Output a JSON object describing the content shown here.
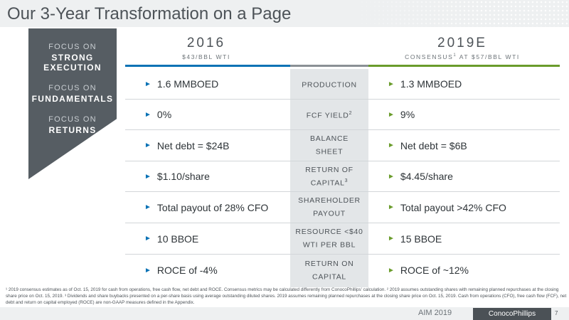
{
  "title": "Our 3-Year Transformation on a Page",
  "sidebar": {
    "items": [
      {
        "pre": "FOCUS ON",
        "main": "STRONG EXECUTION"
      },
      {
        "pre": "FOCUS ON",
        "main": "FUNDAMENTALS"
      },
      {
        "pre": "FOCUS ON",
        "main": "RETURNS"
      }
    ]
  },
  "left_column": {
    "year": "2016",
    "subtitle": "$43/BBL WTI",
    "accent_color": "#0a72b5"
  },
  "right_column": {
    "year": "2019E",
    "subtitle_pre": "CONSENSUS",
    "subtitle_sup": "1",
    "subtitle_post": " AT $57/BBL WTI",
    "accent_color": "#6a9c2b"
  },
  "rows": [
    {
      "left": "1.6 MMBOED",
      "metric": "PRODUCTION",
      "metric_sup": "",
      "right": "1.3 MMBOED"
    },
    {
      "left": "0%",
      "metric": "FCF YIELD",
      "metric_sup": "2",
      "right": "9%"
    },
    {
      "left": "Net debt = $24B",
      "metric": "BALANCE SHEET",
      "metric_sup": "",
      "right": "Net debt = $6B"
    },
    {
      "left": "$1.10/share",
      "metric": "RETURN OF CAPITAL",
      "metric_sup": "3",
      "right": "$4.45/share"
    },
    {
      "left": "Total payout of 28% CFO",
      "metric": "SHAREHOLDER PAYOUT",
      "metric_sup": "",
      "right": "Total payout >42% CFO"
    },
    {
      "left": "10 BBOE",
      "metric": "RESOURCE <$40 WTI PER BBL",
      "metric_sup": "",
      "right": "15 BBOE"
    },
    {
      "left": "ROCE of -4%",
      "metric": "RETURN ON CAPITAL",
      "metric_sup": "",
      "right": "ROCE of ~12%"
    }
  ],
  "footnote": "¹ 2019 consensus estimates as of Oct. 15, 2019 for cash from operations, free cash flow, net debt and ROCE. Consensus metrics may be calculated differently from ConocoPhillips' calculation. ² 2019 assumes outstanding shares with remaining planned repurchases at the closing share price on Oct. 15, 2019. ³ Dividends and share buybacks presented on a per-share basis using average outstanding diluted shares. 2019 assumes remaining planned repurchases at the closing share price on Oct. 15, 2019. Cash from operations (CFO), free cash flow (FCF), net debt and return on capital employed (ROCE) are non-GAAP measures defined in the Appendix.",
  "footer": {
    "event_logo": "AIM 2019",
    "company": "ConocoPhillips",
    "page_number": "7"
  }
}
